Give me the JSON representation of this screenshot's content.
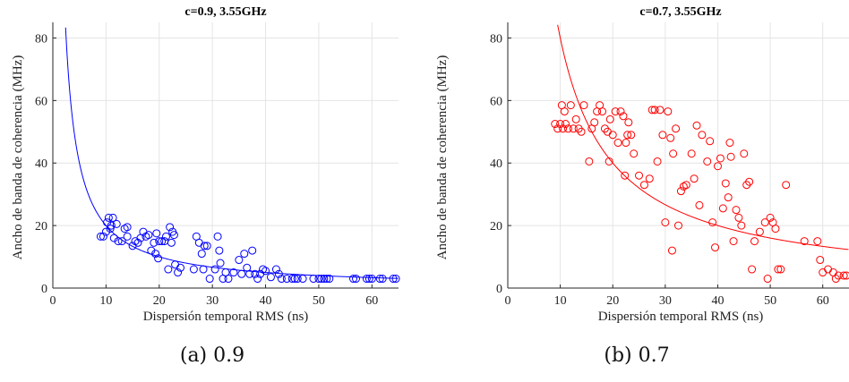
{
  "chart_data": [
    {
      "type": "scatter",
      "title": "c=0.9, 3.55GHz",
      "xlabel": "Dispersión temporal RMS (ns)",
      "ylabel": "Ancho de banda de coherencia (MHz)",
      "xlim": [
        0,
        65
      ],
      "ylim": [
        0,
        85
      ],
      "xticks": [
        "0",
        "10",
        "20",
        "30",
        "40",
        "50",
        "60"
      ],
      "yticks": [
        "0",
        "20",
        "40",
        "60",
        "80"
      ],
      "grid": true,
      "color": "#0000ff",
      "caption": "(a) 0.9",
      "fit_curve": {
        "type": "inverse",
        "formula": "y = 200 / x"
      },
      "points": [
        [
          9,
          16.5
        ],
        [
          9.5,
          16.5
        ],
        [
          10,
          18
        ],
        [
          10.2,
          21
        ],
        [
          10.5,
          22.5
        ],
        [
          10.8,
          19
        ],
        [
          11,
          20
        ],
        [
          11.3,
          22.5
        ],
        [
          11.5,
          16
        ],
        [
          12,
          20.5
        ],
        [
          12.3,
          15
        ],
        [
          13,
          15
        ],
        [
          13.5,
          19
        ],
        [
          14,
          19.5
        ],
        [
          14,
          16.5
        ],
        [
          15,
          13.5
        ],
        [
          15.5,
          15
        ],
        [
          16,
          14.5
        ],
        [
          16.5,
          16
        ],
        [
          17,
          18
        ],
        [
          17.5,
          16.5
        ],
        [
          18,
          17
        ],
        [
          18.5,
          12
        ],
        [
          19,
          14.5
        ],
        [
          19.3,
          11
        ],
        [
          19.5,
          17.5
        ],
        [
          19.8,
          9.5
        ],
        [
          20,
          15
        ],
        [
          20.5,
          15
        ],
        [
          21,
          15
        ],
        [
          21.3,
          16.5
        ],
        [
          21.7,
          6
        ],
        [
          22,
          19.5
        ],
        [
          22.3,
          14.5
        ],
        [
          22.5,
          18
        ],
        [
          22.8,
          17
        ],
        [
          23,
          7.5
        ],
        [
          23.5,
          5
        ],
        [
          24,
          6.5
        ],
        [
          26.5,
          6
        ],
        [
          27,
          16.5
        ],
        [
          27.5,
          14.5
        ],
        [
          28,
          11
        ],
        [
          28.3,
          6
        ],
        [
          28.5,
          13.5
        ],
        [
          29,
          13.5
        ],
        [
          29.5,
          3
        ],
        [
          30.5,
          6
        ],
        [
          31,
          16.5
        ],
        [
          31.3,
          12
        ],
        [
          31.5,
          8
        ],
        [
          32,
          3
        ],
        [
          32.5,
          5
        ],
        [
          33,
          3
        ],
        [
          34,
          5
        ],
        [
          35,
          9
        ],
        [
          35.5,
          4.5
        ],
        [
          36,
          11
        ],
        [
          36.5,
          6.5
        ],
        [
          37,
          4.5
        ],
        [
          37.5,
          12
        ],
        [
          38,
          4.5
        ],
        [
          38.5,
          3
        ],
        [
          39,
          4.5
        ],
        [
          39.5,
          6
        ],
        [
          40,
          5.5
        ],
        [
          41,
          3.5
        ],
        [
          42,
          6
        ],
        [
          42.5,
          4.5
        ],
        [
          43,
          3
        ],
        [
          44,
          3
        ],
        [
          45,
          3
        ],
        [
          45.5,
          3
        ],
        [
          46,
          3
        ],
        [
          47,
          3
        ],
        [
          49,
          3
        ],
        [
          50,
          3
        ],
        [
          50.5,
          3
        ],
        [
          51,
          3
        ],
        [
          51.5,
          3
        ],
        [
          52,
          3
        ],
        [
          56.5,
          3
        ],
        [
          57,
          3
        ],
        [
          59,
          3
        ],
        [
          59.5,
          3
        ],
        [
          60,
          3
        ],
        [
          61.5,
          3
        ],
        [
          62,
          3
        ],
        [
          64,
          3
        ],
        [
          64.5,
          3
        ]
      ]
    },
    {
      "type": "scatter",
      "title": "c=0.7, 3.55GHz",
      "xlabel": "Dispersión temporal RMS (ns)",
      "ylabel": "Ancho de banda de coherencia (MHz)",
      "xlim": [
        0,
        65
      ],
      "ylim": [
        0,
        85
      ],
      "xticks": [
        "0",
        "10",
        "20",
        "30",
        "40",
        "50",
        "60"
      ],
      "yticks": [
        "0",
        "20",
        "40",
        "60",
        "80"
      ],
      "grid": true,
      "color": "#ff0000",
      "caption": "(b) 0.7",
      "fit_curve": {
        "type": "inverse",
        "formula": "y = 800 / x"
      },
      "points": [
        [
          9,
          52.5
        ],
        [
          9.5,
          51
        ],
        [
          10,
          52.5
        ],
        [
          10.3,
          58.5
        ],
        [
          10.5,
          51
        ],
        [
          10.8,
          56.5
        ],
        [
          11,
          52.5
        ],
        [
          11.5,
          51
        ],
        [
          12,
          58.5
        ],
        [
          12.5,
          51
        ],
        [
          13,
          54
        ],
        [
          13.5,
          51
        ],
        [
          14,
          50
        ],
        [
          14.5,
          58.5
        ],
        [
          15.5,
          40.5
        ],
        [
          16,
          51
        ],
        [
          16.5,
          53
        ],
        [
          17,
          56.5
        ],
        [
          17.5,
          58.5
        ],
        [
          18,
          56.5
        ],
        [
          18.5,
          51
        ],
        [
          19,
          50
        ],
        [
          19.3,
          40.5
        ],
        [
          19.5,
          54
        ],
        [
          20,
          49
        ],
        [
          20.5,
          56.5
        ],
        [
          21,
          46.5
        ],
        [
          21.5,
          56.5
        ],
        [
          22,
          55
        ],
        [
          22.3,
          36
        ],
        [
          22.5,
          46.5
        ],
        [
          22.8,
          49
        ],
        [
          23,
          53
        ],
        [
          23.5,
          49
        ],
        [
          24,
          43
        ],
        [
          25,
          36
        ],
        [
          26,
          33
        ],
        [
          27,
          35
        ],
        [
          27.5,
          57
        ],
        [
          28,
          57
        ],
        [
          28.5,
          40.5
        ],
        [
          29,
          57
        ],
        [
          29.5,
          49
        ],
        [
          30,
          21
        ],
        [
          30.5,
          56.5
        ],
        [
          31,
          48
        ],
        [
          31.3,
          12
        ],
        [
          31.5,
          43
        ],
        [
          32,
          51
        ],
        [
          32.5,
          20
        ],
        [
          33,
          31
        ],
        [
          33.5,
          32.5
        ],
        [
          34,
          33
        ],
        [
          35,
          43
        ],
        [
          35.5,
          35
        ],
        [
          36,
          52
        ],
        [
          36.5,
          26.5
        ],
        [
          37,
          49
        ],
        [
          38,
          40.5
        ],
        [
          38.5,
          47
        ],
        [
          39,
          21
        ],
        [
          39.5,
          13
        ],
        [
          40,
          39
        ],
        [
          40.5,
          41.5
        ],
        [
          41,
          25.5
        ],
        [
          41.5,
          33.5
        ],
        [
          42,
          29
        ],
        [
          42.3,
          46.5
        ],
        [
          42.5,
          42
        ],
        [
          43,
          15
        ],
        [
          43.5,
          25
        ],
        [
          44,
          22.5
        ],
        [
          44.5,
          20
        ],
        [
          45,
          43
        ],
        [
          45.5,
          33
        ],
        [
          46,
          34
        ],
        [
          46.5,
          6
        ],
        [
          47,
          15
        ],
        [
          48,
          18
        ],
        [
          49,
          21
        ],
        [
          49.5,
          3
        ],
        [
          50,
          22.5
        ],
        [
          50.5,
          21
        ],
        [
          51,
          19
        ],
        [
          51.5,
          6
        ],
        [
          52,
          6
        ],
        [
          53,
          33
        ],
        [
          56.5,
          15
        ],
        [
          59,
          15
        ],
        [
          59.5,
          9
        ],
        [
          60,
          5
        ],
        [
          61,
          6
        ],
        [
          62,
          5
        ],
        [
          62.5,
          3
        ],
        [
          63,
          4
        ],
        [
          64,
          4
        ],
        [
          64.5,
          4
        ]
      ]
    }
  ]
}
